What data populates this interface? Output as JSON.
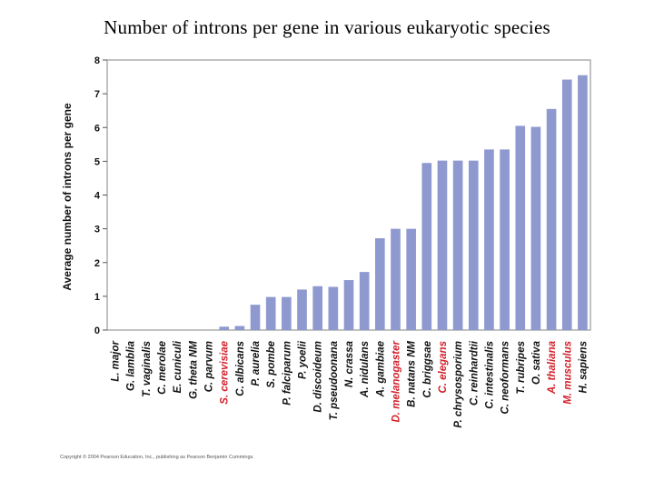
{
  "chart_data": {
    "type": "bar",
    "title": "Number of introns per gene in various eukaryotic species",
    "xlabel": "",
    "ylabel": "Average number of introns per gene",
    "ylim": [
      0,
      8
    ],
    "yticks": [
      0,
      1,
      2,
      3,
      4,
      5,
      6,
      7,
      8
    ],
    "grid": false,
    "legend": "none",
    "bar_color": "#8e99cf",
    "highlight_color": "#d2202a",
    "categories": [
      "L. major",
      "G. lamblia",
      "T. vaginalis",
      "C. merolae",
      "E. cuniculi",
      "G. theta NM",
      "C. parvum",
      "S. cerevisiae",
      "C. albicans",
      "P. aurelia",
      "S. pombe",
      "P. falciparum",
      "P. yoelii",
      "D. discoideum",
      "T. pseudoonana",
      "N. crassa",
      "A. nidulans",
      "A. gambiae",
      "D. melanogaster",
      "B. natans NM",
      "C. briggsae",
      "C. elegans",
      "P. chrysosporium",
      "C. reinhardtii",
      "C. intestinalis",
      "C. neoformans",
      "T. rubripes",
      "O. sativa",
      "A. thaliana",
      "M. musculus",
      "H. sapiens"
    ],
    "highlighted": [
      "S. cerevisiae",
      "D. melanogaster",
      "C. elegans",
      "A. thaliana",
      "M. musculus"
    ],
    "values": [
      0,
      0,
      0,
      0,
      0,
      0,
      0,
      0.1,
      0.12,
      0.75,
      0.98,
      0.98,
      1.2,
      1.3,
      1.28,
      1.48,
      1.72,
      2.72,
      3.0,
      3.0,
      4.95,
      5.02,
      5.02,
      5.02,
      5.35,
      5.35,
      6.05,
      6.02,
      6.55,
      7.42,
      7.55
    ]
  },
  "copyright": "Copyright © 2004 Pearson Education, Inc., publishing as Pearson Benjamin Cummings."
}
